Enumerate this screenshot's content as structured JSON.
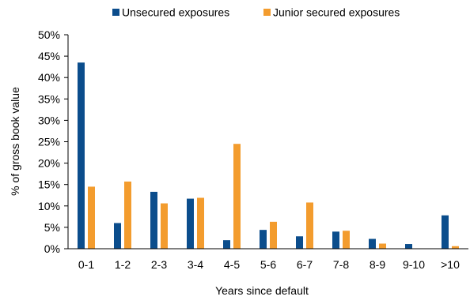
{
  "chart_data": {
    "type": "bar",
    "title": "",
    "xlabel": "Years since default",
    "ylabel": "% of gross book value",
    "ylim": [
      0,
      50
    ],
    "y_ticks": [
      "0%",
      "5%",
      "10%",
      "15%",
      "20%",
      "25%",
      "30%",
      "35%",
      "40%",
      "45%",
      "50%"
    ],
    "y_tick_values": [
      0,
      5,
      10,
      15,
      20,
      25,
      30,
      35,
      40,
      45,
      50
    ],
    "categories": [
      "0-1",
      "1-2",
      "2-3",
      "3-4",
      "4-5",
      "5-6",
      "6-7",
      "7-8",
      "8-9",
      "9-10",
      ">10"
    ],
    "legend_position": "top",
    "grid": false,
    "series": [
      {
        "name": "Unsecured exposures",
        "color": "#0B4D8C",
        "values": [
          43.5,
          6.0,
          13.3,
          11.7,
          2.0,
          4.4,
          2.9,
          4.0,
          2.3,
          1.1,
          7.8
        ]
      },
      {
        "name": "Junior secured exposures",
        "color": "#F39C2E",
        "values": [
          14.5,
          15.7,
          10.6,
          11.9,
          24.5,
          6.3,
          10.8,
          4.2,
          1.2,
          0.0,
          0.6
        ]
      }
    ]
  }
}
